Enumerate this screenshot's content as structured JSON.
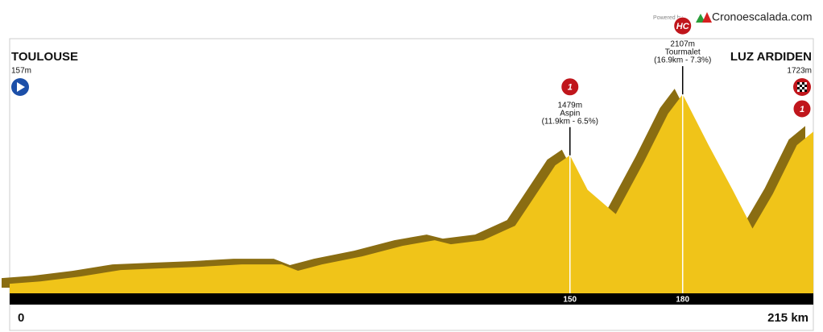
{
  "chart_data": {
    "type": "area",
    "x": [
      0,
      9,
      19.7,
      30.4,
      41,
      51.4,
      62.6,
      73.3,
      77.6,
      84,
      94.7,
      105.4,
      114,
      118.3,
      126.9,
      135.4,
      139.7,
      146.1,
      150,
      154.7,
      162.2,
      169.7,
      176.1,
      180,
      186.9,
      193.3,
      198.6,
      204,
      210.4,
      215
    ],
    "values": [
      157,
      181,
      231,
      298,
      315,
      331,
      356,
      356,
      290,
      356,
      439,
      547,
      605,
      563,
      605,
      754,
      1003,
      1377,
      1479,
      1123,
      874,
      1413,
      1908,
      2107,
      1584,
      1123,
      725,
      1082,
      1584,
      1723
    ],
    "color": "#f0c419",
    "shadow_color": "#8a6d12",
    "xlim": [
      0,
      215
    ],
    "ylim": [
      0,
      3000
    ],
    "xticks": [
      0,
      150,
      180,
      {
        "value": 215,
        "label": "215 km"
      }
    ],
    "start": {
      "name": "TOULOUSE",
      "label": "157m"
    },
    "finish": {
      "name": "LUZ ARDIDEN",
      "label": "1723m",
      "category": "1"
    },
    "climbs": [
      {
        "x": 150,
        "elevation": 1479,
        "label": "1479m",
        "name": "Aspin",
        "detail": "(11.9km - 6.5%)",
        "category": "1"
      },
      {
        "x": 180,
        "elevation": 2107,
        "label": "2107m",
        "name": "Tourmalet",
        "detail": "(16.9km - 7.3%)",
        "category": "HC"
      }
    ],
    "powered_by": "Powered by",
    "brand": "Cronoescalada.com"
  }
}
